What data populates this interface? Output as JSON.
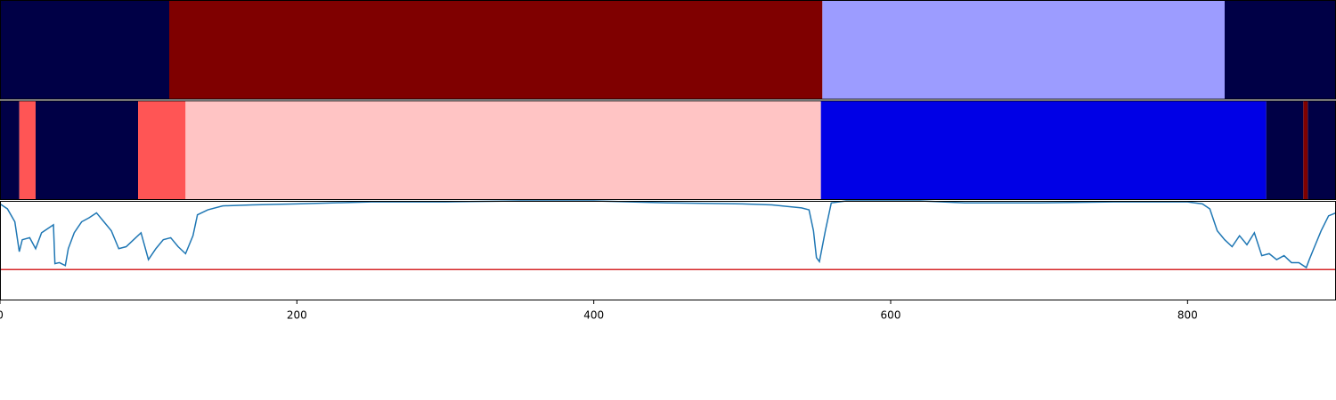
{
  "chart_data": [
    {
      "type": "segments",
      "xlim": [
        0,
        900
      ],
      "segments": [
        {
          "start": 0,
          "end": 114,
          "color": "#000046"
        },
        {
          "start": 114,
          "end": 554,
          "color": "#7f0000"
        },
        {
          "start": 554,
          "end": 825,
          "color": "#9c9cff"
        },
        {
          "start": 825,
          "end": 900,
          "color": "#000046"
        }
      ]
    },
    {
      "type": "segments",
      "xlim": [
        0,
        900
      ],
      "segments": [
        {
          "start": 0,
          "end": 13,
          "color": "#000046"
        },
        {
          "start": 13,
          "end": 24,
          "color": "#ff5555"
        },
        {
          "start": 24,
          "end": 93,
          "color": "#000046"
        },
        {
          "start": 93,
          "end": 125,
          "color": "#ff5555"
        },
        {
          "start": 125,
          "end": 553,
          "color": "#ffc4c4"
        },
        {
          "start": 553,
          "end": 853,
          "color": "#0000e6"
        },
        {
          "start": 853,
          "end": 878,
          "color": "#000046"
        },
        {
          "start": 878,
          "end": 881,
          "color": "#7f0000"
        },
        {
          "start": 881,
          "end": 900,
          "color": "#000046"
        }
      ]
    },
    {
      "type": "line",
      "xlim": [
        0,
        900
      ],
      "ylim": [
        0,
        1
      ],
      "xticks": [
        0,
        200,
        400,
        600,
        800
      ],
      "color": "#1f77b4",
      "threshold": 0.31,
      "threshold_color": "#d62728",
      "x": [
        0,
        5,
        10,
        13,
        15,
        20,
        24,
        28,
        33,
        36,
        37,
        40,
        44,
        46,
        50,
        55,
        60,
        65,
        70,
        75,
        80,
        85,
        90,
        95,
        100,
        105,
        110,
        115,
        120,
        125,
        130,
        133,
        140,
        150,
        170,
        200,
        250,
        300,
        350,
        400,
        450,
        500,
        520,
        540,
        545,
        548,
        550,
        552,
        556,
        560,
        570,
        600,
        620,
        650,
        700,
        750,
        800,
        810,
        815,
        820,
        825,
        830,
        835,
        840,
        845,
        850,
        855,
        860,
        865,
        870,
        875,
        880,
        882,
        885,
        890,
        895,
        900
      ],
      "values": [
        0.97,
        0.92,
        0.79,
        0.49,
        0.61,
        0.63,
        0.52,
        0.68,
        0.73,
        0.76,
        0.37,
        0.38,
        0.35,
        0.52,
        0.68,
        0.79,
        0.83,
        0.88,
        0.79,
        0.7,
        0.52,
        0.54,
        0.61,
        0.68,
        0.41,
        0.52,
        0.61,
        0.63,
        0.54,
        0.47,
        0.65,
        0.86,
        0.91,
        0.95,
        0.96,
        0.97,
        0.99,
        0.99,
        1.0,
        1.0,
        0.98,
        0.97,
        0.96,
        0.93,
        0.91,
        0.7,
        0.43,
        0.39,
        0.7,
        0.98,
        1.0,
        1.0,
        1.0,
        0.98,
        0.98,
        0.99,
        0.99,
        0.97,
        0.92,
        0.7,
        0.61,
        0.54,
        0.65,
        0.56,
        0.68,
        0.45,
        0.47,
        0.41,
        0.45,
        0.38,
        0.38,
        0.33,
        0.41,
        0.52,
        0.7,
        0.85,
        0.88
      ]
    }
  ]
}
